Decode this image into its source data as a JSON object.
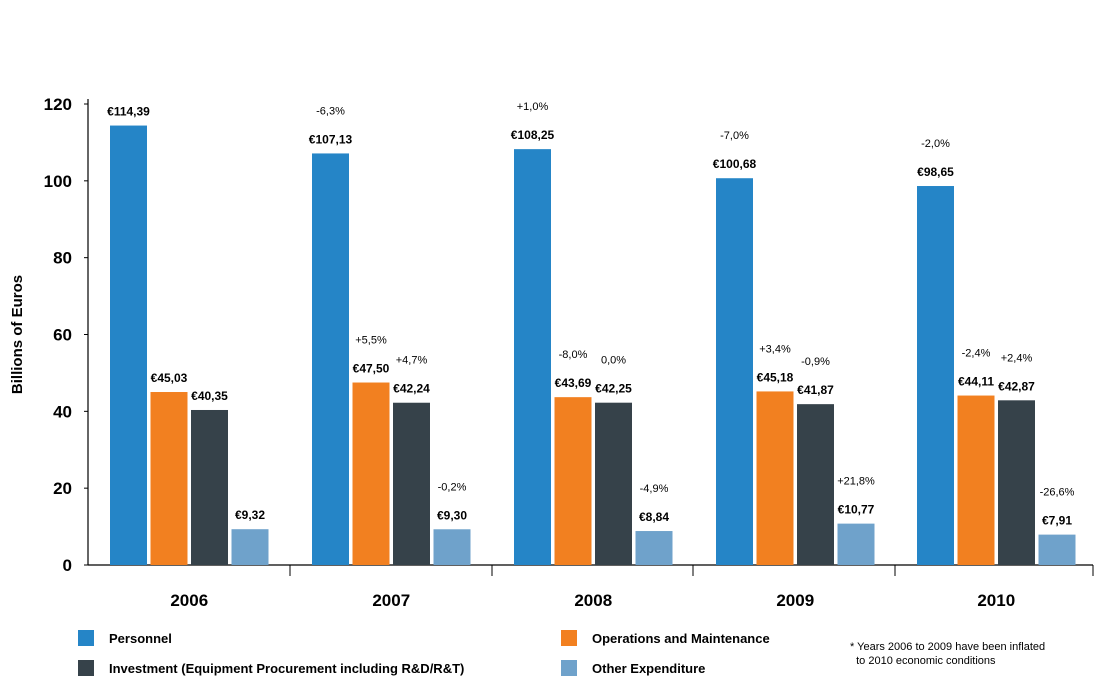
{
  "chart_data": {
    "type": "bar",
    "ylabel": "Billions of Euros",
    "xlabel": "",
    "ylim": [
      0,
      120
    ],
    "yticks": [
      "0",
      "20",
      "40",
      "60",
      "80",
      "100",
      "120"
    ],
    "categories": [
      "2006",
      "2007",
      "2008",
      "2009",
      "2010"
    ],
    "series": [
      {
        "name": "Personnel",
        "color": "#2585c7",
        "values": [
          114.39,
          107.13,
          108.25,
          100.68,
          98.65
        ],
        "labels": [
          "€114,39",
          "€107,13",
          "€108,25",
          "€100,68",
          "€98,65"
        ],
        "changes": [
          "",
          "-6,3%",
          "+1,0%",
          "-7,0%",
          "-2,0%"
        ]
      },
      {
        "name": "Operations and Maintenance",
        "color": "#f28020",
        "values": [
          45.03,
          47.5,
          43.69,
          45.18,
          44.11
        ],
        "labels": [
          "€45,03",
          "€47,50",
          "€43,69",
          "€45,18",
          "€44,11"
        ],
        "changes": [
          "",
          "+5,5%",
          "-8,0%",
          "+3,4%",
          "-2,4%"
        ]
      },
      {
        "name": "Investment (Equipment Procurement including R&D/R&T)",
        "color": "#36424a",
        "values": [
          40.35,
          42.24,
          42.25,
          41.87,
          42.87
        ],
        "labels": [
          "€40,35",
          "€42,24",
          "€42,25",
          "€41,87",
          "€42,87"
        ],
        "changes": [
          "",
          "+4,7%",
          "0,0%",
          "-0,9%",
          "+2,4%"
        ]
      },
      {
        "name": "Other Expenditure",
        "color": "#6fa2cb",
        "values": [
          9.32,
          9.3,
          8.84,
          10.77,
          7.91
        ],
        "labels": [
          "€9,32",
          "€9,30",
          "€8,84",
          "€10,77",
          "€7,91"
        ],
        "changes": [
          "",
          "-0,2%",
          "-4,9%",
          "+21,8%",
          "-26,6%"
        ]
      }
    ],
    "legend_position": "bottom"
  },
  "footnote": "* Years 2006 to 2009 have been inflated\n  to 2010 economic conditions"
}
